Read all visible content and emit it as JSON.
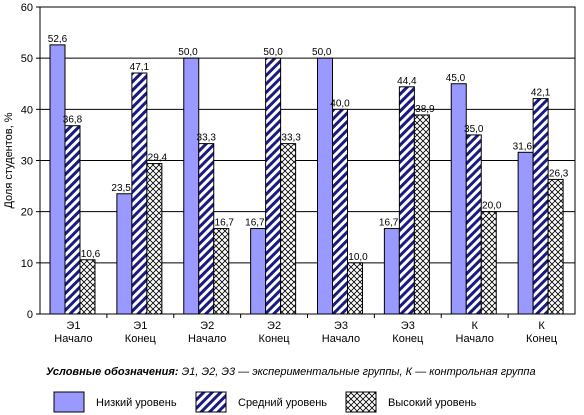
{
  "chart_data": {
    "type": "bar",
    "categories": [
      [
        "Э1",
        "Начало"
      ],
      [
        "Э1",
        "Конец"
      ],
      [
        "Э2",
        "Начало"
      ],
      [
        "Э2",
        "Конец"
      ],
      [
        "Э3",
        "Начало"
      ],
      [
        "Э3",
        "Конец"
      ],
      [
        "К",
        "Начало"
      ],
      [
        "К",
        "Конец"
      ]
    ],
    "series": [
      {
        "name": "Низкий уровень",
        "values": [
          52.6,
          23.5,
          50.0,
          16.7,
          50.0,
          16.7,
          45.0,
          31.6
        ],
        "color": "#9999ff",
        "pattern": "solid"
      },
      {
        "name": "Средний уровень",
        "values": [
          36.8,
          47.1,
          33.3,
          50.0,
          40.0,
          44.4,
          35.0,
          42.1
        ],
        "color": "#1a1a80",
        "pattern": "diagonal"
      },
      {
        "name": "Высокий уровень",
        "values": [
          10.6,
          29.4,
          16.7,
          33.3,
          10.0,
          38.9,
          20.0,
          26.3
        ],
        "color": "#000000",
        "pattern": "crosshatch"
      }
    ],
    "value_labels": [
      [
        "52,6",
        "36,8",
        "10,6"
      ],
      [
        "23,5",
        "47,1",
        "29,4"
      ],
      [
        "50,0",
        "33,3",
        "16,7"
      ],
      [
        "16,7",
        "50,0",
        "33,3"
      ],
      [
        "50,0",
        "40,0",
        "10,0"
      ],
      [
        "16,7",
        "44,4",
        "38,9"
      ],
      [
        "45,0",
        "35,0",
        "20,0"
      ],
      [
        "31,6",
        "42,1",
        "26,3"
      ]
    ],
    "ylabel": "Доля студентов, %",
    "ylim": [
      0,
      60
    ],
    "yticks": [
      "0",
      "10",
      "20",
      "30",
      "40",
      "50",
      "60"
    ],
    "grid": true,
    "legend_placement": "bottom"
  },
  "legend_note": {
    "prefix": "Условные обозначения:",
    "text": " Э1, Э2, Э3 — экспериментальные группы, К — контрольная группа"
  }
}
